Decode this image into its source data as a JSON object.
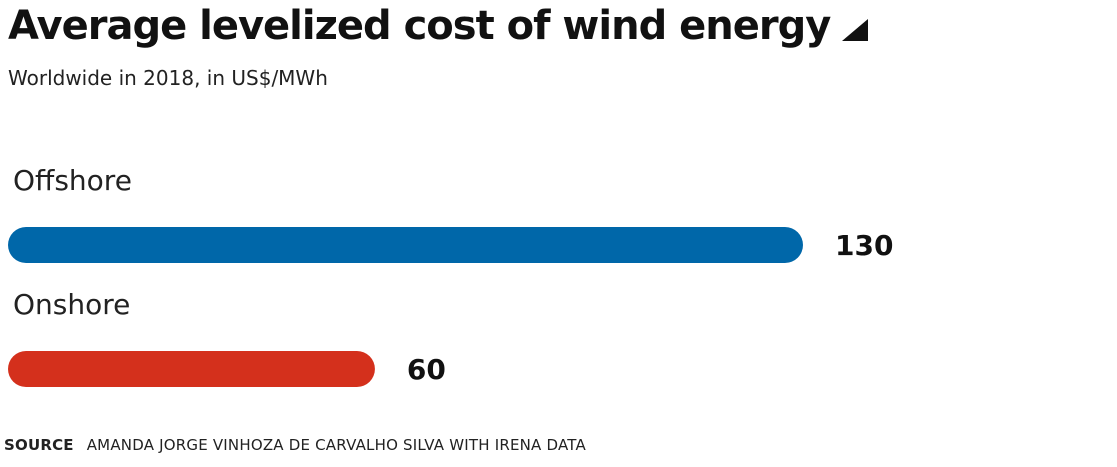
{
  "title": "Average levelized cost of wind energy",
  "subtitle": "Worldwide in 2018, in US$/MWh",
  "source": {
    "label": "SOURCE",
    "text": "AMANDA JORGE VINHOZA DE CARVALHO SILVA WITH IRENA DATA"
  },
  "colors": {
    "offshore": "#0067a9",
    "onshore": "#d4301c",
    "text": "#111111"
  },
  "chart_data": {
    "type": "bar",
    "orientation": "horizontal",
    "title": "Average levelized cost of wind energy",
    "subtitle": "Worldwide in 2018, in US$/MWh",
    "categories": [
      "Offshore",
      "Onshore"
    ],
    "values": [
      130,
      60
    ],
    "data_labels": [
      "130",
      "60"
    ],
    "colors": [
      "#0067a9",
      "#d4301c"
    ],
    "xlim": [
      0,
      130
    ],
    "grid": false,
    "legend": "none"
  }
}
